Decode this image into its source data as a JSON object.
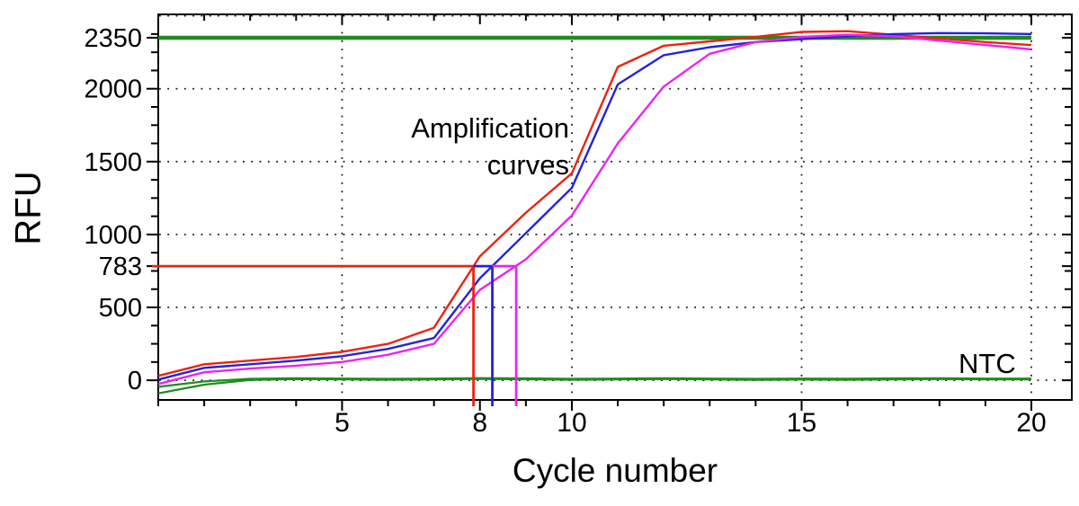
{
  "figure": {
    "y_axis_title": "RFU",
    "x_axis_title": "Cycle number",
    "amplification_label": "Amplification\ncurves",
    "ntc_label": "NTC"
  },
  "chart_data": {
    "type": "line",
    "title": "",
    "xlabel": "Cycle number",
    "ylabel": "RFU",
    "xlim": [
      1,
      20.88
    ],
    "ylim": [
      -135,
      2510
    ],
    "grid": "dotted-on-majors",
    "legend": "none",
    "x_ticks": [
      {
        "value": 5,
        "label": "5"
      },
      {
        "value": 8,
        "label": "8"
      },
      {
        "value": 10,
        "label": "10"
      },
      {
        "value": 15,
        "label": "15"
      },
      {
        "value": 20,
        "label": "20"
      }
    ],
    "y_ticks": [
      {
        "value": 0,
        "label": "0"
      },
      {
        "value": 500,
        "label": "500"
      },
      {
        "value": 783,
        "label": "783"
      },
      {
        "value": 1000,
        "label": "1000"
      },
      {
        "value": 1500,
        "label": "1500"
      },
      {
        "value": 2000,
        "label": "2000"
      },
      {
        "value": 2350,
        "label": "2350"
      }
    ],
    "x_minor_tick_step": 1,
    "y_minor_tick_step": 125,
    "grid_x": [
      5,
      10,
      15,
      20
    ],
    "grid_y": [
      0,
      500,
      1000,
      1500,
      2000,
      2500
    ],
    "x": [
      1,
      2,
      3,
      4,
      5,
      6,
      7,
      8,
      9,
      10,
      11,
      12,
      13,
      14,
      15,
      16,
      17,
      18,
      19,
      20
    ],
    "series": [
      {
        "name": "amplification-sample-red",
        "color": "#ee2211",
        "width": 2.4,
        "values": [
          30,
          110,
          135,
          160,
          195,
          250,
          360,
          850,
          1150,
          1420,
          2150,
          2295,
          2325,
          2355,
          2390,
          2395,
          2370,
          2345,
          2320,
          2300
        ]
      },
      {
        "name": "amplification-sample-blue",
        "color": "#2222dd",
        "width": 2.4,
        "values": [
          5,
          85,
          110,
          135,
          165,
          215,
          290,
          700,
          1010,
          1320,
          2030,
          2230,
          2285,
          2320,
          2340,
          2360,
          2375,
          2382,
          2380,
          2375
        ]
      },
      {
        "name": "amplification-sample-magenta",
        "color": "#ee22ee",
        "width": 2.4,
        "values": [
          -25,
          55,
          80,
          100,
          125,
          175,
          250,
          620,
          830,
          1130,
          1625,
          2015,
          2240,
          2320,
          2355,
          2370,
          2360,
          2330,
          2300,
          2270
        ]
      },
      {
        "name": "ntc-trace-1",
        "color": "#1e8c1e",
        "width": 2.2,
        "values": [
          -45,
          -8,
          10,
          14,
          12,
          10,
          12,
          15,
          13,
          10,
          12,
          14,
          12,
          10,
          12,
          11,
          13,
          14,
          12,
          12
        ]
      },
      {
        "name": "ntc-trace-2",
        "color": "#1e8c1e",
        "width": 2.2,
        "values": [
          -90,
          -30,
          2,
          8,
          6,
          4,
          6,
          9,
          7,
          4,
          6,
          8,
          6,
          3,
          5,
          4,
          6,
          8,
          6,
          6
        ]
      }
    ],
    "plateau_line": {
      "value": 2350,
      "x_start": 1,
      "x_end": 20,
      "color": "#1e8c1e",
      "width": 4.5
    },
    "threshold": {
      "value": 783,
      "ct_lines": [
        {
          "name": "ct-red",
          "ct": 7.86,
          "color": "#ee2211"
        },
        {
          "name": "ct-blue",
          "ct": 8.27,
          "color": "#2222dd"
        },
        {
          "name": "ct-magenta",
          "ct": 8.79,
          "color": "#ee22ee"
        }
      ],
      "line_width": 2.8
    },
    "annotations": [
      {
        "text": "Amplification\ncurves",
        "anchor": "right",
        "x_cycle": 9.95,
        "y_rfu_top": 1750
      },
      {
        "text": "NTC",
        "x_cycle": 18.5,
        "y_rfu": 120
      }
    ],
    "frame_color": "#000000",
    "grid_dot_color": "#1a1a1a",
    "background": "#ffffff"
  }
}
